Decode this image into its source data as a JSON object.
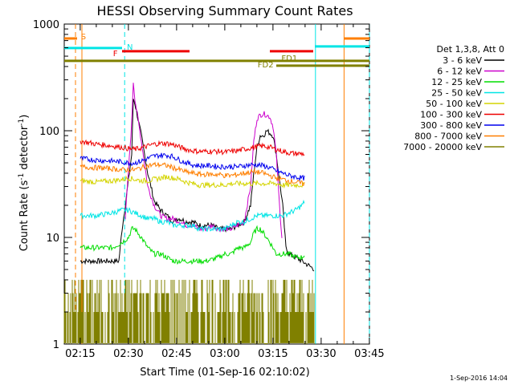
{
  "chart_data": {
    "type": "line",
    "title": "HESSI Observing Summary Count Rates",
    "xlabel": "Start Time (01-Sep-16 02:10:02)",
    "ylabel": "Count Rate (s",
    "ylabel_sup1": "-1",
    "ylabel_mid": " detector",
    "ylabel_sup2": "-1",
    "ylabel_end": ")",
    "y_scale": "log",
    "ylim": [
      1,
      1000
    ],
    "xlim_minutes": [
      0,
      95
    ],
    "x_ticks": [
      {
        "label": "02:15",
        "minute": 4.97
      },
      {
        "label": "02:30",
        "minute": 19.97
      },
      {
        "label": "02:45",
        "minute": 34.97
      },
      {
        "label": "03:00",
        "minute": 49.97
      },
      {
        "label": "03:15",
        "minute": 64.97
      },
      {
        "label": "03:30",
        "minute": 79.97
      },
      {
        "label": "03:45",
        "minute": 94.97
      }
    ],
    "y_ticks": [
      {
        "label": "1",
        "value": 1
      },
      {
        "label": "10",
        "value": 10
      },
      {
        "label": "100",
        "value": 100
      },
      {
        "label": "1000",
        "value": 1000
      }
    ],
    "legend_header": "Det 1,3,8, Att 0",
    "timestamp": "1-Sep-2016 14:04",
    "series": [
      {
        "name": "3 - 6 keV",
        "color": "#000000",
        "points": [
          [
            5,
            6
          ],
          [
            12,
            6
          ],
          [
            17,
            6
          ],
          [
            18,
            12
          ],
          [
            19,
            20
          ],
          [
            21,
            60
          ],
          [
            21.5,
            200
          ],
          [
            22,
            180
          ],
          [
            24,
            90
          ],
          [
            26,
            40
          ],
          [
            27,
            30
          ],
          [
            28,
            22
          ],
          [
            30,
            18
          ],
          [
            32,
            16
          ],
          [
            34,
            14
          ],
          [
            35,
            15
          ],
          [
            36,
            15
          ],
          [
            38,
            14
          ],
          [
            40,
            14
          ],
          [
            42,
            13
          ],
          [
            44,
            13
          ],
          [
            46,
            13
          ],
          [
            48,
            12
          ],
          [
            50,
            12
          ],
          [
            52,
            12
          ],
          [
            54,
            13
          ],
          [
            56,
            14
          ],
          [
            58,
            20
          ],
          [
            59,
            40
          ],
          [
            60,
            70
          ],
          [
            61,
            90
          ],
          [
            62,
            90
          ],
          [
            63,
            100
          ],
          [
            64,
            95
          ],
          [
            65,
            90
          ],
          [
            66,
            60
          ],
          [
            68,
            20
          ],
          [
            69,
            8
          ],
          [
            70,
            7
          ],
          [
            74,
            6
          ],
          [
            78,
            5
          ]
        ]
      },
      {
        "name": "6 - 12 keV",
        "color": "#cc00cc",
        "points": [
          [
            19,
            15
          ],
          [
            21,
            120
          ],
          [
            21.5,
            290
          ],
          [
            22,
            200
          ],
          [
            24,
            80
          ],
          [
            26,
            30
          ],
          [
            28,
            20
          ],
          [
            30,
            16
          ],
          [
            32,
            15
          ],
          [
            34,
            15
          ],
          [
            36,
            14
          ],
          [
            38,
            13
          ],
          [
            40,
            13
          ],
          [
            42,
            12
          ],
          [
            44,
            12
          ],
          [
            46,
            13
          ],
          [
            48,
            12
          ],
          [
            50,
            12
          ],
          [
            52,
            12
          ],
          [
            54,
            13
          ],
          [
            56,
            14
          ],
          [
            58,
            30
          ],
          [
            59,
            80
          ],
          [
            60,
            130
          ],
          [
            61,
            140
          ],
          [
            62,
            145
          ],
          [
            63,
            140
          ],
          [
            64,
            135
          ],
          [
            65,
            110
          ],
          [
            66,
            60
          ],
          [
            67,
            20
          ],
          [
            68,
            8
          ]
        ]
      },
      {
        "name": "12 - 25 keV",
        "color": "#00dd00",
        "points": [
          [
            5,
            8
          ],
          [
            10,
            8
          ],
          [
            15,
            8
          ],
          [
            18,
            9
          ],
          [
            20,
            10
          ],
          [
            21,
            12
          ],
          [
            22,
            12
          ],
          [
            24,
            10
          ],
          [
            26,
            8
          ],
          [
            28,
            7
          ],
          [
            30,
            7
          ],
          [
            32,
            6.5
          ],
          [
            34,
            6
          ],
          [
            36,
            6
          ],
          [
            38,
            6
          ],
          [
            40,
            6
          ],
          [
            42,
            6
          ],
          [
            44,
            6
          ],
          [
            46,
            6.2
          ],
          [
            48,
            6.5
          ],
          [
            50,
            7
          ],
          [
            52,
            7
          ],
          [
            54,
            8
          ],
          [
            56,
            8
          ],
          [
            58,
            9
          ],
          [
            59,
            11
          ],
          [
            60,
            12
          ],
          [
            61,
            12
          ],
          [
            62,
            11
          ],
          [
            63,
            10
          ],
          [
            64,
            9
          ],
          [
            65,
            8
          ],
          [
            66,
            7
          ],
          [
            68,
            7
          ],
          [
            70,
            7
          ],
          [
            72,
            6.5
          ],
          [
            74,
            6.5
          ],
          [
            75,
            7
          ]
        ]
      },
      {
        "name": "25 - 50 keV",
        "color": "#00e5e5",
        "points": [
          [
            5,
            16
          ],
          [
            10,
            16
          ],
          [
            15,
            17
          ],
          [
            18,
            18
          ],
          [
            20,
            18
          ],
          [
            22,
            17
          ],
          [
            24,
            16
          ],
          [
            26,
            15
          ],
          [
            28,
            15
          ],
          [
            30,
            14
          ],
          [
            32,
            14
          ],
          [
            34,
            13
          ],
          [
            36,
            13
          ],
          [
            38,
            13
          ],
          [
            40,
            13
          ],
          [
            42,
            12
          ],
          [
            44,
            12
          ],
          [
            46,
            12
          ],
          [
            48,
            12
          ],
          [
            50,
            12
          ],
          [
            52,
            13
          ],
          [
            54,
            14
          ],
          [
            56,
            14
          ],
          [
            58,
            15
          ],
          [
            60,
            16
          ],
          [
            62,
            16
          ],
          [
            64,
            16
          ],
          [
            66,
            16
          ],
          [
            68,
            16
          ],
          [
            70,
            17
          ],
          [
            72,
            18
          ],
          [
            74,
            20
          ],
          [
            75,
            22
          ]
        ]
      },
      {
        "name": "50 - 100 keV",
        "color": "#d4d400",
        "points": [
          [
            5,
            34
          ],
          [
            10,
            33
          ],
          [
            15,
            34
          ],
          [
            18,
            35
          ],
          [
            20,
            36
          ],
          [
            22,
            35
          ],
          [
            24,
            34
          ],
          [
            26,
            34
          ],
          [
            28,
            35
          ],
          [
            30,
            36
          ],
          [
            32,
            37
          ],
          [
            34,
            36
          ],
          [
            36,
            35
          ],
          [
            38,
            33
          ],
          [
            40,
            32
          ],
          [
            42,
            31
          ],
          [
            44,
            31
          ],
          [
            46,
            31
          ],
          [
            48,
            31
          ],
          [
            50,
            31
          ],
          [
            52,
            32
          ],
          [
            54,
            32
          ],
          [
            56,
            32
          ],
          [
            58,
            32
          ],
          [
            60,
            32
          ],
          [
            62,
            32
          ],
          [
            64,
            32
          ],
          [
            66,
            32
          ],
          [
            68,
            31
          ],
          [
            70,
            31
          ],
          [
            72,
            31
          ],
          [
            74,
            31
          ],
          [
            75,
            31
          ]
        ]
      },
      {
        "name": "100 - 300 keV",
        "color": "#ee0000",
        "points": [
          [
            5,
            80
          ],
          [
            10,
            75
          ],
          [
            15,
            72
          ],
          [
            18,
            70
          ],
          [
            20,
            68
          ],
          [
            22,
            67
          ],
          [
            24,
            69
          ],
          [
            26,
            72
          ],
          [
            28,
            75
          ],
          [
            30,
            76
          ],
          [
            32,
            76
          ],
          [
            34,
            74
          ],
          [
            36,
            70
          ],
          [
            38,
            67
          ],
          [
            40,
            65
          ],
          [
            42,
            64
          ],
          [
            44,
            64
          ],
          [
            46,
            64
          ],
          [
            48,
            64
          ],
          [
            50,
            63
          ],
          [
            52,
            64
          ],
          [
            54,
            65
          ],
          [
            56,
            67
          ],
          [
            58,
            69
          ],
          [
            60,
            71
          ],
          [
            62,
            72
          ],
          [
            64,
            70
          ],
          [
            66,
            67
          ],
          [
            68,
            64
          ],
          [
            70,
            62
          ],
          [
            72,
            61
          ],
          [
            74,
            61
          ],
          [
            75,
            60
          ]
        ]
      },
      {
        "name": "300 - 800 keV",
        "color": "#0000ee",
        "points": [
          [
            5,
            55
          ],
          [
            10,
            53
          ],
          [
            15,
            52
          ],
          [
            18,
            51
          ],
          [
            20,
            50
          ],
          [
            22,
            50
          ],
          [
            24,
            52
          ],
          [
            26,
            55
          ],
          [
            28,
            58
          ],
          [
            30,
            59
          ],
          [
            32,
            59
          ],
          [
            34,
            57
          ],
          [
            36,
            53
          ],
          [
            38,
            50
          ],
          [
            40,
            48
          ],
          [
            42,
            47
          ],
          [
            44,
            47
          ],
          [
            46,
            47
          ],
          [
            48,
            46
          ],
          [
            50,
            46
          ],
          [
            52,
            46
          ],
          [
            54,
            46
          ],
          [
            56,
            47
          ],
          [
            58,
            48
          ],
          [
            60,
            48
          ],
          [
            62,
            47
          ],
          [
            64,
            45
          ],
          [
            66,
            42
          ],
          [
            68,
            40
          ],
          [
            70,
            38
          ],
          [
            72,
            37
          ],
          [
            74,
            36
          ],
          [
            75,
            36
          ]
        ]
      },
      {
        "name": "800 - 7000 keV",
        "color": "#ff7f00",
        "points": [
          [
            5,
            46
          ],
          [
            10,
            45
          ],
          [
            15,
            44
          ],
          [
            18,
            43
          ],
          [
            20,
            43
          ],
          [
            22,
            43
          ],
          [
            24,
            45
          ],
          [
            26,
            47
          ],
          [
            28,
            48
          ],
          [
            30,
            48
          ],
          [
            32,
            47
          ],
          [
            34,
            45
          ],
          [
            36,
            43
          ],
          [
            38,
            41
          ],
          [
            40,
            40
          ],
          [
            42,
            39
          ],
          [
            44,
            39
          ],
          [
            46,
            39
          ],
          [
            48,
            39
          ],
          [
            50,
            38
          ],
          [
            52,
            38
          ],
          [
            54,
            39
          ],
          [
            56,
            40
          ],
          [
            58,
            41
          ],
          [
            60,
            41
          ],
          [
            62,
            40
          ],
          [
            64,
            38
          ],
          [
            66,
            36
          ],
          [
            68,
            35
          ],
          [
            70,
            34
          ],
          [
            72,
            33
          ],
          [
            74,
            32
          ],
          [
            75,
            32
          ]
        ]
      },
      {
        "name": "7000 - 20000 keV",
        "color": "#808000",
        "points": []
      }
    ],
    "flags": [
      {
        "label": "S",
        "color": "#ff7f00",
        "x1": 0,
        "x2": 4,
        "y_frac": 0.955
      },
      {
        "label": "N",
        "color": "#00e5e5",
        "x1": 0,
        "x2": 18,
        "y_frac": 0.925
      },
      {
        "label": "F",
        "color": "#ee0000",
        "x1": 18,
        "x2": 39,
        "y_frac": 0.915
      },
      {
        "label": "FD1",
        "color": "#ee0000",
        "x1": 64,
        "x2": 77.5,
        "y_frac": 0.915
      },
      {
        "label": "FD1",
        "color": "#808000",
        "x1": 0,
        "x2": 95,
        "y_frac": 0.885
      },
      {
        "label": "FD2",
        "color": "#808000",
        "x1": 66,
        "x2": 95,
        "y_frac": 0.87
      },
      {
        "label": "N",
        "color": "#00e5e5",
        "x1": 78,
        "x2": 95,
        "y_frac": 0.93
      },
      {
        "label": "S",
        "color": "#ff7f00",
        "x1": 87,
        "x2": 95,
        "y_frac": 0.955
      }
    ],
    "flag_labels": [
      {
        "text": "S",
        "color": "#ff7f00",
        "minute": 5.2,
        "y_frac": 0.962
      },
      {
        "text": "N",
        "color": "#00e5e5",
        "minute": 19.5,
        "y_frac": 0.93
      },
      {
        "text": "F",
        "color": "#ee0000",
        "minute": 15.2,
        "y_frac": 0.91
      },
      {
        "text": "FD1",
        "color": "#808000",
        "minute": 67.6,
        "y_frac": 0.895
      },
      {
        "text": "FD2",
        "color": "#808000",
        "minute": 60.2,
        "y_frac": 0.875
      }
    ],
    "vlines": [
      {
        "minute": 3.5,
        "color": "#ff7f00",
        "style": "dash"
      },
      {
        "minute": 5.5,
        "color": "#ff7f00",
        "style": "solid"
      },
      {
        "minute": 18.8,
        "color": "#00e5e5",
        "style": "dash"
      },
      {
        "minute": 78.2,
        "color": "#00e5e5",
        "style": "solid"
      },
      {
        "minute": 87.1,
        "color": "#ff7f00",
        "style": "solid"
      },
      {
        "minute": 95.0,
        "color": "#00e5e5",
        "style": "dash"
      }
    ]
  }
}
